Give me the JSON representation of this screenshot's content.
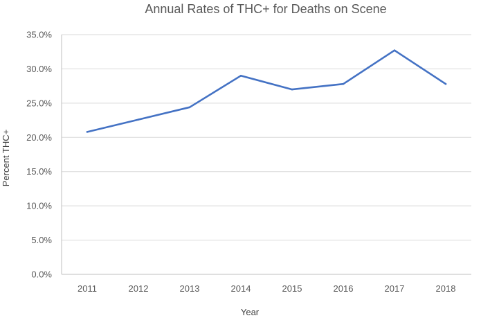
{
  "chart_data": {
    "type": "line",
    "title": "Annual Rates of THC+ for Deaths on Scene",
    "xlabel": "Year",
    "ylabel": "Percent THC+",
    "categories": [
      "2011",
      "2012",
      "2013",
      "2014",
      "2015",
      "2016",
      "2017",
      "2018"
    ],
    "series": [
      {
        "color": "#4472c4",
        "values": [
          20.8,
          22.6,
          24.4,
          29.0,
          27.0,
          27.8,
          32.7,
          27.8
        ]
      }
    ],
    "ylim": [
      0,
      35
    ],
    "yticks": [
      "0.0%",
      "5.0%",
      "10.0%",
      "15.0%",
      "20.0%",
      "25.0%",
      "30.0%",
      "35.0%"
    ],
    "ytick_values": [
      0,
      5,
      10,
      15,
      20,
      25,
      30,
      35
    ],
    "grid": true,
    "legend": "none"
  }
}
